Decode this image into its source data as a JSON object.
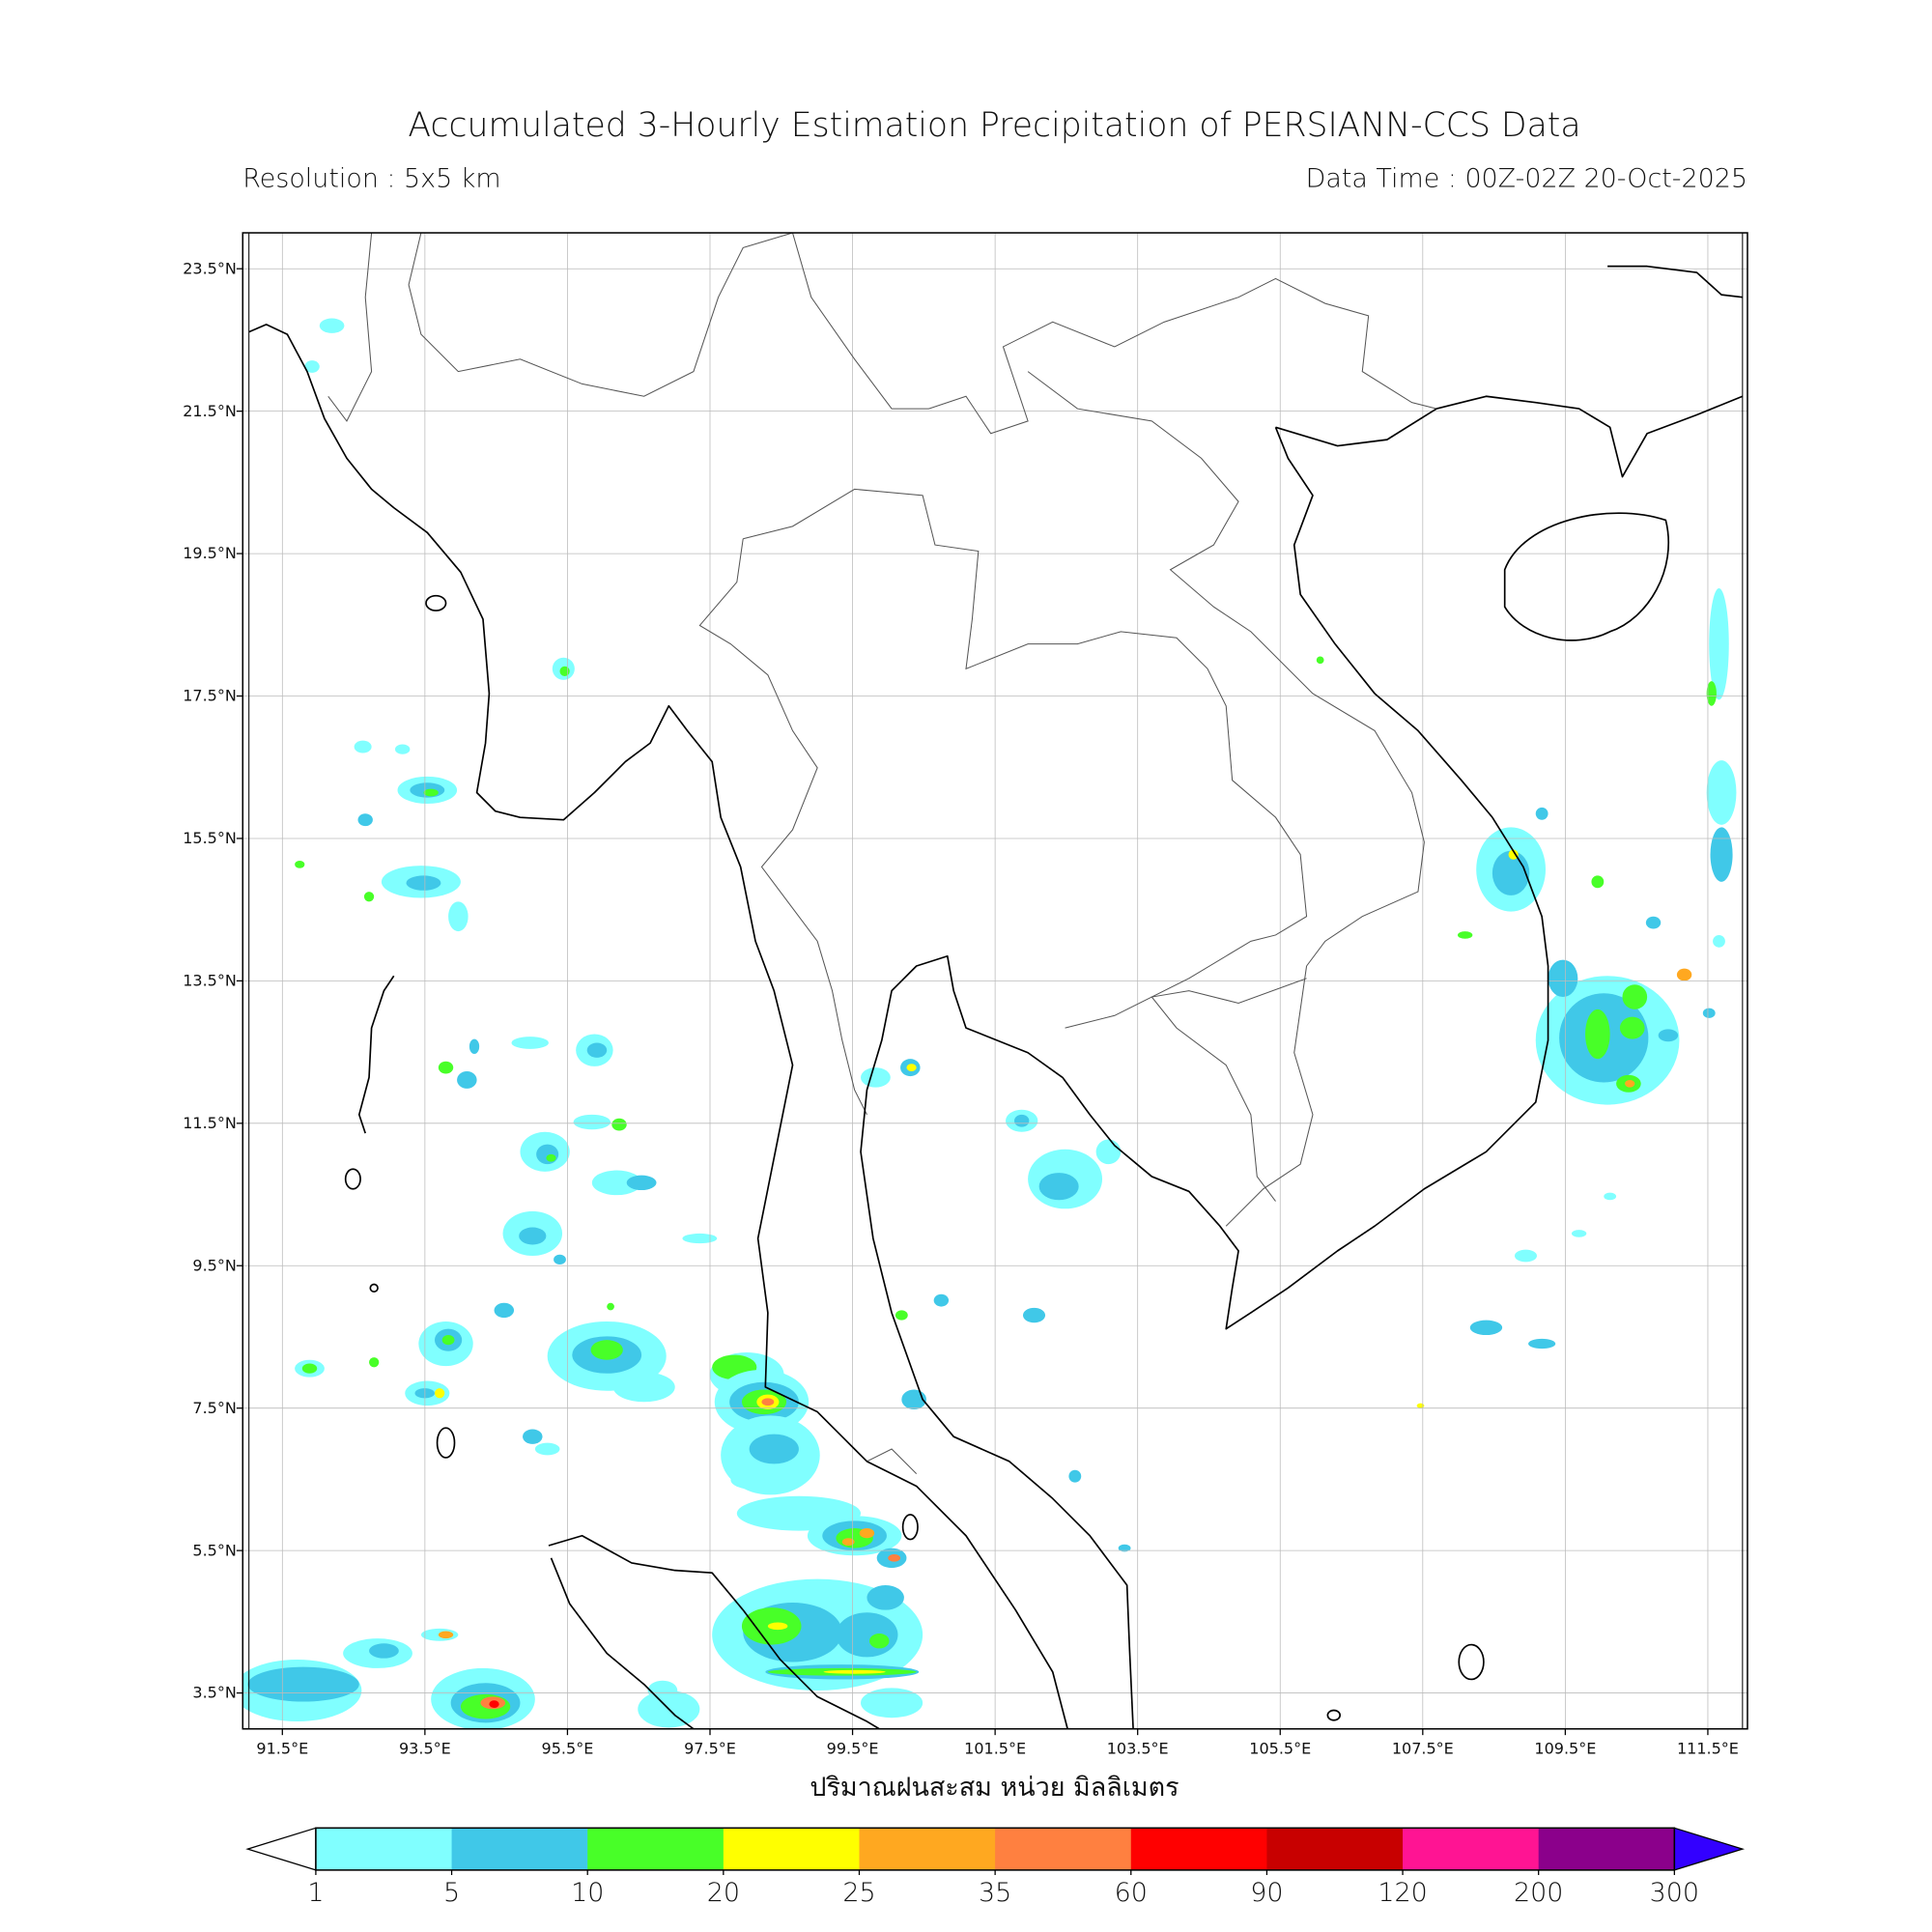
{
  "header": {
    "title": "Accumulated 3-Hourly Estimation Precipitation of PERSIANN-CCS Data",
    "resolution": "Resolution : 5x5 km",
    "data_time": "Data Time : 00Z-02Z 20-Oct-2025"
  },
  "map": {
    "extent_lon": [
      91,
      112
    ],
    "extent_lat": [
      3,
      24
    ],
    "grid": true,
    "lon_ticks": [
      "91.5°E",
      "93.5°E",
      "95.5°E",
      "97.5°E",
      "99.5°E",
      "101.5°E",
      "103.5°E",
      "105.5°E",
      "107.5°E",
      "109.5°E",
      "111.5°E"
    ],
    "lat_ticks": [
      "23.5°N",
      "21.5°N",
      "19.5°N",
      "17.5°N",
      "15.5°N",
      "13.5°N",
      "11.5°N",
      "9.5°N",
      "7.5°N",
      "5.5°N",
      "3.5°N"
    ],
    "xlabel": "ปริมาณฝนสะสม หน่วย มิลลิเมตร"
  },
  "colorbar": {
    "labels": [
      "1",
      "5",
      "10",
      "20",
      "25",
      "35",
      "60",
      "90",
      "120",
      "200",
      "300"
    ],
    "colors": [
      "#80ffff",
      "#40c8e8",
      "#48ff28",
      "#ffff00",
      "#ffa820",
      "#ff8040",
      "#ff0000",
      "#c80000",
      "#ff1493",
      "#8b008b"
    ],
    "under_color": "#ffffff",
    "over_color": "#3300ff"
  }
}
